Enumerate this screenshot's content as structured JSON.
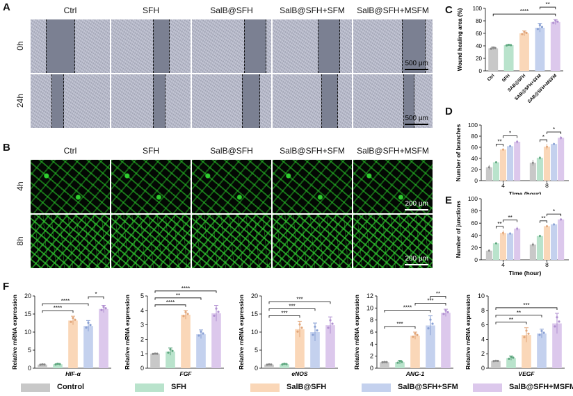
{
  "colors": {
    "Control": "#c8c8c8",
    "SFH": "#b9e3cc",
    "SalB@SFH": "#fad7b8",
    "SalB@SFH+SFM": "#c4d1ee",
    "SalB@SFH+MSFM": "#dcc8ec",
    "dots": "#4a7fd4"
  },
  "panelA": {
    "letter": "A",
    "columns": [
      "Ctrl",
      "SFH",
      "SalB@SFH",
      "SalB@SFH+SFM",
      "SalB@SFH+MSFM"
    ],
    "rows": [
      "0h",
      "24h"
    ],
    "scale": [
      "500 μm",
      "500 μm"
    ]
  },
  "panelB": {
    "letter": "B",
    "columns": [
      "Ctrl",
      "SFH",
      "SalB@SFH",
      "SalB@SFH+SFM",
      "SalB@SFH+MSFM"
    ],
    "rows": [
      "4h",
      "8h"
    ],
    "scale": [
      "200 μm",
      "200 μm"
    ]
  },
  "chart_data": [
    {
      "id": "C",
      "type": "bar",
      "ylabel": "Wound healing area (%)",
      "categories": [
        "Ctrl",
        "SFH",
        "SAB@SFH",
        "SAB@SFH+SFM",
        "SAB@SFH+MSFM"
      ],
      "values": [
        36,
        41,
        60,
        69,
        78
      ],
      "errors": [
        2,
        1,
        4,
        7,
        4
      ],
      "ylim": [
        0,
        100
      ],
      "yticks": [
        0,
        20,
        40,
        60,
        80,
        100
      ],
      "significance": [
        {
          "from": 0,
          "to": 4,
          "label": "****"
        },
        {
          "from": 3,
          "to": 4,
          "label": "**"
        }
      ]
    },
    {
      "id": "D",
      "type": "bar",
      "ylabel": "Number of branches",
      "xlabel": "Time (hour)",
      "categories": [
        "4",
        "8"
      ],
      "series": [
        {
          "name": "Control",
          "values": [
            24,
            32
          ],
          "errors": [
            4,
            5
          ]
        },
        {
          "name": "SFH",
          "values": [
            33,
            41
          ],
          "errors": [
            2,
            3
          ]
        },
        {
          "name": "SalB@SFH",
          "values": [
            56,
            61
          ],
          "errors": [
            2,
            5
          ]
        },
        {
          "name": "SalB@SFH+SFM",
          "values": [
            62,
            66
          ],
          "errors": [
            2,
            2
          ]
        },
        {
          "name": "SalB@SFH+MSFM",
          "values": [
            70,
            77
          ],
          "errors": [
            3,
            3
          ]
        }
      ],
      "ylim": [
        0,
        100
      ],
      "yticks": [
        0,
        20,
        40,
        60,
        80,
        100
      ],
      "significance": [
        {
          "group": 0,
          "from": 1,
          "to": 2,
          "label": "**"
        },
        {
          "group": 0,
          "from": 2,
          "to": 4,
          "label": "*"
        },
        {
          "group": 1,
          "from": 1,
          "to": 2,
          "label": "*"
        },
        {
          "group": 1,
          "from": 2,
          "to": 4,
          "label": "*"
        }
      ]
    },
    {
      "id": "E",
      "type": "bar",
      "ylabel": "Number of junctions",
      "xlabel": "Time (hour)",
      "categories": [
        "4",
        "8"
      ],
      "series": [
        {
          "name": "Control",
          "values": [
            15,
            25
          ],
          "errors": [
            2,
            3
          ]
        },
        {
          "name": "SFH",
          "values": [
            27,
            39
          ],
          "errors": [
            1,
            2
          ]
        },
        {
          "name": "SalB@SFH",
          "values": [
            44,
            55
          ],
          "errors": [
            4,
            2
          ]
        },
        {
          "name": "SalB@SFH+SFM",
          "values": [
            43,
            58
          ],
          "errors": [
            2,
            2
          ]
        },
        {
          "name": "SalB@SFH+MSFM",
          "values": [
            51,
            66
          ],
          "errors": [
            3,
            2
          ]
        }
      ],
      "ylim": [
        0,
        100
      ],
      "yticks": [
        0,
        20,
        40,
        60,
        80,
        100
      ],
      "significance": [
        {
          "group": 0,
          "from": 1,
          "to": 2,
          "label": "**"
        },
        {
          "group": 0,
          "from": 2,
          "to": 4,
          "label": "**"
        },
        {
          "group": 1,
          "from": 1,
          "to": 2,
          "label": "**"
        },
        {
          "group": 1,
          "from": 2,
          "to": 4,
          "label": "*"
        }
      ]
    },
    {
      "id": "F1",
      "type": "bar",
      "ylabel": "Relative mRNA expression",
      "xlabel": "HIF-α",
      "categories": [
        "Control",
        "SFH",
        "SalB@SFH",
        "SalB@SFH+SFM",
        "SalB@SFH+MSFM"
      ],
      "values": [
        1.0,
        1.1,
        13.2,
        11.7,
        16.4
      ],
      "errors": [
        0.1,
        0.2,
        1.2,
        1.5,
        1.0
      ],
      "ylim": [
        0,
        20
      ],
      "yticks": [
        0,
        5,
        10,
        15,
        20
      ],
      "significance": [
        {
          "from": 0,
          "to": 2,
          "label": "****"
        },
        {
          "from": 0,
          "to": 3,
          "label": "****"
        },
        {
          "from": 3,
          "to": 4,
          "label": "*"
        }
      ]
    },
    {
      "id": "F2",
      "type": "bar",
      "ylabel": "Relative mRNA expression",
      "xlabel": "FGF",
      "categories": [
        "Control",
        "SFH",
        "SalB@SFH",
        "SalB@SFH+SFM",
        "SalB@SFH+MSFM"
      ],
      "values": [
        1.0,
        1.15,
        3.7,
        2.35,
        3.8
      ],
      "errors": [
        0.02,
        0.25,
        0.3,
        0.3,
        0.55
      ],
      "ylim": [
        0,
        5
      ],
      "yticks": [
        0,
        1,
        2,
        3,
        4,
        5
      ],
      "significance": [
        {
          "from": 0,
          "to": 2,
          "label": "****"
        },
        {
          "from": 0,
          "to": 3,
          "label": "**"
        },
        {
          "from": 0,
          "to": 4,
          "label": "****"
        }
      ]
    },
    {
      "id": "F3",
      "type": "bar",
      "ylabel": "Relative mRNA expression",
      "xlabel": "eNOS",
      "categories": [
        "Control",
        "SFH",
        "SalB@SFH",
        "SalB@SFH+SFM",
        "SalB@SFH+MSFM"
      ],
      "values": [
        1.0,
        1.1,
        10.8,
        10.0,
        11.9
      ],
      "errors": [
        0.1,
        0.2,
        2.2,
        2.5,
        2.3
      ],
      "ylim": [
        0,
        20
      ],
      "yticks": [
        0,
        5,
        10,
        15,
        20
      ],
      "significance": [
        {
          "from": 0,
          "to": 2,
          "label": "***"
        },
        {
          "from": 0,
          "to": 3,
          "label": "***"
        },
        {
          "from": 0,
          "to": 4,
          "label": "***"
        }
      ]
    },
    {
      "id": "F4",
      "type": "bar",
      "ylabel": "Relative mRNA expression",
      "xlabel": "ANG-1",
      "categories": [
        "Control",
        "SFH",
        "SalB@SFH",
        "SalB@SFH+SFM",
        "SalB@SFH+MSFM"
      ],
      "values": [
        1.0,
        1.0,
        5.4,
        7.1,
        9.2
      ],
      "errors": [
        0.05,
        0.3,
        0.6,
        1.6,
        0.6
      ],
      "ylim": [
        0,
        12
      ],
      "yticks": [
        0,
        2,
        4,
        6,
        8,
        10,
        12
      ],
      "significance": [
        {
          "from": 0,
          "to": 2,
          "label": "***"
        },
        {
          "from": 0,
          "to": 3,
          "label": "****"
        },
        {
          "from": 2,
          "to": 4,
          "label": "***"
        },
        {
          "from": 3,
          "to": 4,
          "label": "**"
        }
      ]
    },
    {
      "id": "F5",
      "type": "bar",
      "ylabel": "Relative mRNA expression",
      "xlabel": "VEGF",
      "categories": [
        "Control",
        "SFH",
        "SalB@SFH",
        "SalB@SFH+SFM",
        "SalB@SFH+MSFM"
      ],
      "values": [
        1.0,
        1.4,
        4.6,
        4.8,
        6.2
      ],
      "errors": [
        0.05,
        0.3,
        1.0,
        0.6,
        1.4
      ],
      "ylim": [
        0,
        10
      ],
      "yticks": [
        0,
        2,
        4,
        6,
        8,
        10
      ],
      "significance": [
        {
          "from": 0,
          "to": 2,
          "label": "**"
        },
        {
          "from": 0,
          "to": 3,
          "label": "**"
        },
        {
          "from": 0,
          "to": 4,
          "label": "***"
        }
      ]
    }
  ],
  "legend": [
    {
      "label": "Control"
    },
    {
      "label": "SFH"
    },
    {
      "label": "SalB@SFH"
    },
    {
      "label": "SalB@SFH+SFM"
    },
    {
      "label": "SalB@SFH+MSFM"
    }
  ],
  "panelLetters": {
    "C": "C",
    "D": "D",
    "E": "E",
    "F": "F"
  }
}
